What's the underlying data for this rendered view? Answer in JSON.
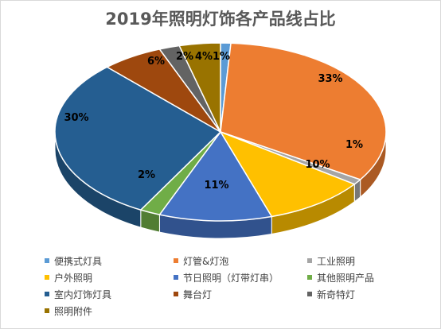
{
  "chart_data": {
    "type": "pie",
    "title": "2019年照明灯饰各产品线占比",
    "series": [
      {
        "name": "便携式灯具",
        "value": 1,
        "label": "1%",
        "color": "#5B9BD5"
      },
      {
        "name": "灯管&灯泡",
        "value": 33,
        "label": "33%",
        "color": "#ED7D31"
      },
      {
        "name": "工业照明",
        "value": 1,
        "label": "1%",
        "color": "#A5A5A5"
      },
      {
        "name": "户外照明",
        "value": 10,
        "label": "10%",
        "color": "#FFC000"
      },
      {
        "name": "节日照明（灯带灯串）",
        "value": 11,
        "label": "11%",
        "color": "#4472C4"
      },
      {
        "name": "其他照明产品",
        "value": 2,
        "label": "2%",
        "color": "#70AD47"
      },
      {
        "name": "室内灯饰灯具",
        "value": 30,
        "label": "30%",
        "color": "#255E91"
      },
      {
        "name": "舞台灯",
        "value": 6,
        "label": "6%",
        "color": "#9E480E"
      },
      {
        "name": "新奇特灯",
        "value": 2,
        "label": "2%",
        "color": "#636363"
      },
      {
        "name": "照明附件",
        "value": 4,
        "label": "4%",
        "color": "#997300"
      }
    ],
    "style": "3d-pie",
    "legend_position": "bottom"
  }
}
